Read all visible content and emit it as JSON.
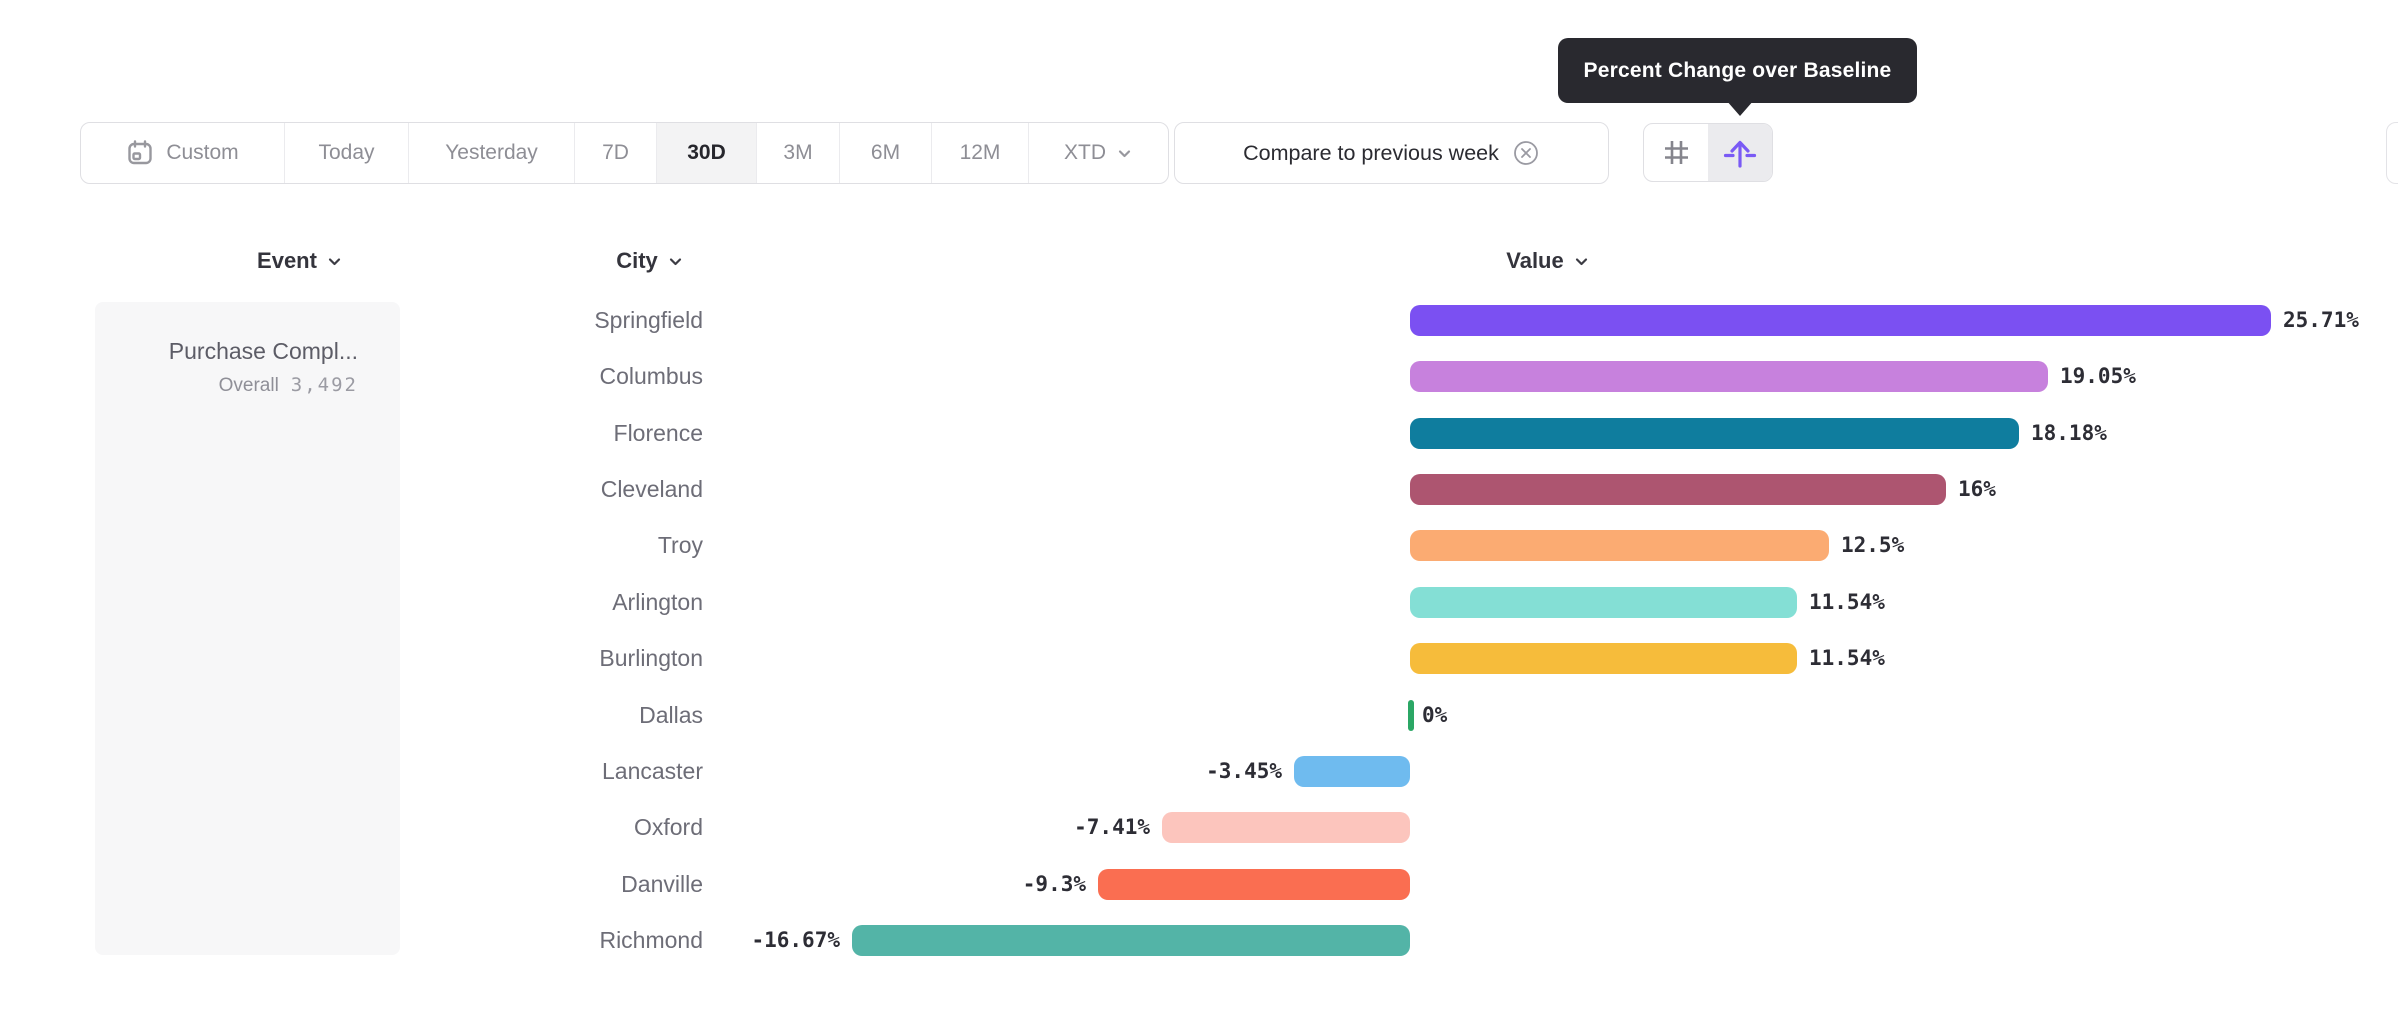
{
  "tooltip": {
    "text": "Percent Change over Baseline"
  },
  "toolbar": {
    "ranges": [
      "Custom",
      "Today",
      "Yesterday",
      "7D",
      "30D",
      "3M",
      "6M",
      "12M",
      "XTD"
    ],
    "selected_range": "30D",
    "compare_label": "Compare to previous week",
    "icons": {
      "custom": "calendar-icon",
      "compare_clear": "circle-x-icon",
      "left_toggle": "hash-grid-icon",
      "right_toggle": "baseline-lift-icon",
      "xtd_dropdown": "chevron-down-icon"
    }
  },
  "columns": {
    "event": "Event",
    "city": "City",
    "value": "Value"
  },
  "event_panel": {
    "event_name": "Purchase Compl...",
    "overall_label": "Overall",
    "overall_value": "3,492"
  },
  "colors": {
    "accent_purple": "#7a5af5",
    "tooltip_bg": "#29292f",
    "selected_segment_bg": "#f3f3f4",
    "panel_bg": "#f7f7f8",
    "zero_tick_green": "#2ba765"
  },
  "chart_data": {
    "type": "bar",
    "orientation": "horizontal",
    "title": "Percent Change over Baseline",
    "value_format": "percent",
    "series_event": "Purchase Compl...",
    "series_overall": "3,492",
    "categories": [
      "Springfield",
      "Columbus",
      "Florence",
      "Cleveland",
      "Troy",
      "Arlington",
      "Burlington",
      "Dallas",
      "Lancaster",
      "Oxford",
      "Danville",
      "Richmond"
    ],
    "values": [
      25.71,
      19.05,
      18.18,
      16,
      12.5,
      11.54,
      11.54,
      0,
      -3.45,
      -7.41,
      -9.3,
      -16.67
    ],
    "value_labels": [
      "25.71%",
      "19.05%",
      "18.18%",
      "16%",
      "12.5%",
      "11.54%",
      "11.54%",
      "0%",
      "-3.45%",
      "-7.41%",
      "-9.3%",
      "-16.67%"
    ],
    "bar_colors": [
      "#7b50f2",
      "#c781dd",
      "#0f7d9e",
      "#ad5570",
      "#fbab72",
      "#84dfd5",
      "#f6bc3b",
      "#2ba765",
      "#6fbbef",
      "#fcc5bd",
      "#fa6e51",
      "#53b4a7"
    ],
    "xlim": [
      -16.67,
      25.71
    ],
    "grid": false,
    "legend": false
  }
}
